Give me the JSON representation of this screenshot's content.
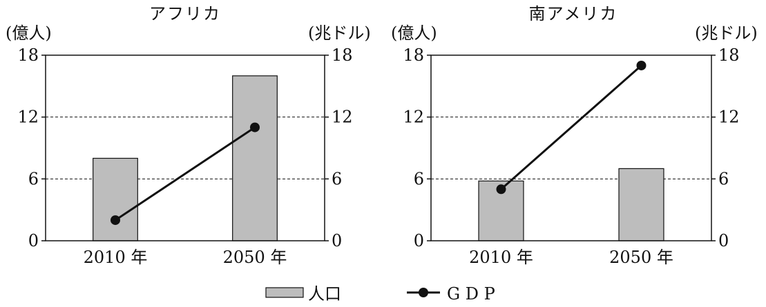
{
  "legend": {
    "bar_label": "人口",
    "line_label": "G D P",
    "bar_fill": "#bdbdbd",
    "line_color": "#111111"
  },
  "chart_data": [
    {
      "type": "bar",
      "title": "アフリカ",
      "categories": [
        "2010 年",
        "2050 年"
      ],
      "left_unit": "(億人)",
      "right_unit": "(兆ドル)",
      "ylim": [
        0,
        18
      ],
      "yticks": [
        0,
        6,
        12,
        18
      ],
      "grid": "dashed",
      "series": [
        {
          "name": "人口",
          "type": "bar",
          "axis": "left",
          "values": [
            8,
            16
          ]
        },
        {
          "name": "G D P",
          "type": "line",
          "axis": "right",
          "values": [
            2,
            11
          ]
        }
      ]
    },
    {
      "type": "bar",
      "title": "南アメリカ",
      "categories": [
        "2010 年",
        "2050 年"
      ],
      "left_unit": "(億人)",
      "right_unit": "(兆ドル)",
      "ylim": [
        0,
        18
      ],
      "yticks": [
        0,
        6,
        12,
        18
      ],
      "grid": "dashed",
      "series": [
        {
          "name": "人口",
          "type": "bar",
          "axis": "left",
          "values": [
            5.8,
            7
          ]
        },
        {
          "name": "G D P",
          "type": "line",
          "axis": "right",
          "values": [
            5,
            17
          ]
        }
      ]
    }
  ]
}
